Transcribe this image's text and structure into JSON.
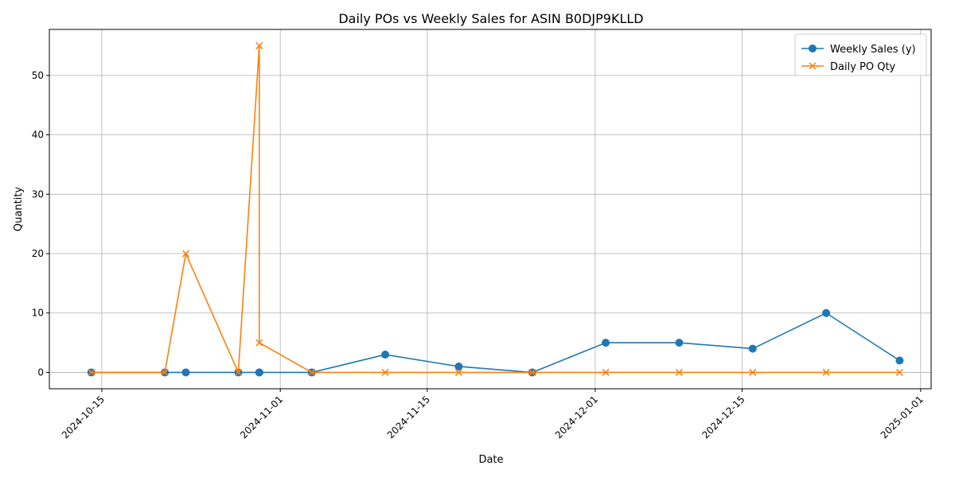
{
  "chart_data": {
    "type": "line",
    "title": "Daily POs vs Weekly Sales for ASIN B0DJP9KLLD",
    "xlabel": "Date",
    "ylabel": "Quantity",
    "xlim": [
      "2024-10-10",
      "2025-01-02"
    ],
    "ylim": [
      -2.75,
      57.75
    ],
    "grid": true,
    "legend_position": "top-right",
    "x_ticks": [
      "2024-10-15",
      "2024-11-01",
      "2024-11-15",
      "2024-12-01",
      "2024-12-15",
      "2025-01-01"
    ],
    "y_ticks": [
      0,
      10,
      20,
      30,
      40,
      50
    ],
    "series": [
      {
        "name": "Weekly Sales (y)",
        "color": "#1f77b4",
        "marker": "circle",
        "points": [
          {
            "x": "2024-10-14",
            "y": 0
          },
          {
            "x": "2024-10-21",
            "y": 0
          },
          {
            "x": "2024-10-23",
            "y": 0
          },
          {
            "x": "2024-10-28",
            "y": 0
          },
          {
            "x": "2024-10-30",
            "y": 0
          },
          {
            "x": "2024-10-30",
            "y": 0
          },
          {
            "x": "2024-11-04",
            "y": 0
          },
          {
            "x": "2024-11-11",
            "y": 3
          },
          {
            "x": "2024-11-18",
            "y": 1
          },
          {
            "x": "2024-11-25",
            "y": 0
          },
          {
            "x": "2024-12-02",
            "y": 5
          },
          {
            "x": "2024-12-09",
            "y": 5
          },
          {
            "x": "2024-12-16",
            "y": 4
          },
          {
            "x": "2024-12-23",
            "y": 10
          },
          {
            "x": "2024-12-30",
            "y": 2
          }
        ]
      },
      {
        "name": "Daily PO Qty",
        "color": "#ff7f0e",
        "marker": "x",
        "points": [
          {
            "x": "2024-10-14",
            "y": 0
          },
          {
            "x": "2024-10-21",
            "y": 0
          },
          {
            "x": "2024-10-23",
            "y": 20
          },
          {
            "x": "2024-10-28",
            "y": 0
          },
          {
            "x": "2024-10-30",
            "y": 55
          },
          {
            "x": "2024-10-30",
            "y": 5
          },
          {
            "x": "2024-11-04",
            "y": 0
          },
          {
            "x": "2024-11-11",
            "y": 0
          },
          {
            "x": "2024-11-18",
            "y": 0
          },
          {
            "x": "2024-11-25",
            "y": 0
          },
          {
            "x": "2024-12-02",
            "y": 0
          },
          {
            "x": "2024-12-09",
            "y": 0
          },
          {
            "x": "2024-12-16",
            "y": 0
          },
          {
            "x": "2024-12-23",
            "y": 0
          },
          {
            "x": "2024-12-30",
            "y": 0
          }
        ]
      }
    ]
  }
}
